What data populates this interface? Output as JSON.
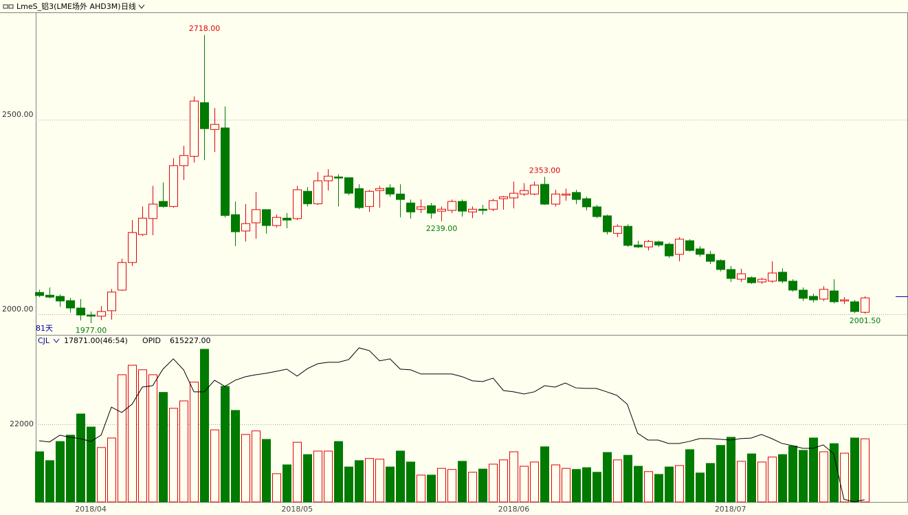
{
  "chart_data": [
    {
      "type": "candlestick",
      "title": "LmeS_铝3(LME场外 AHD3M)",
      "period": "日线",
      "days_label": "81天",
      "categories": [
        null,
        null,
        null,
        null,
        null,
        "2018/04",
        null,
        null,
        null,
        null,
        null,
        null,
        null,
        null,
        null,
        null,
        null,
        null,
        null,
        null,
        null,
        null,
        null,
        null,
        null,
        "2018/05",
        null,
        null,
        null,
        null,
        null,
        null,
        null,
        null,
        null,
        null,
        null,
        null,
        null,
        null,
        null,
        null,
        null,
        null,
        null,
        null,
        "2018/06",
        null,
        null,
        null,
        null,
        null,
        null,
        null,
        null,
        null,
        null,
        null,
        null,
        null,
        null,
        null,
        null,
        null,
        null,
        null,
        null,
        "2018/07",
        null,
        null,
        null,
        null,
        null,
        null,
        null,
        null,
        null,
        null,
        null,
        null,
        null
      ],
      "open": [
        2056,
        2049,
        2046,
        2035,
        2016,
        1998,
        1995,
        2009,
        2062,
        2133,
        2205,
        2246,
        2290,
        2277,
        2382,
        2406,
        2544,
        2475,
        2479,
        2256,
        2214,
        2235,
        2269,
        2228,
        2247,
        2246,
        2316,
        2284,
        2343,
        2353,
        2351,
        2323,
        2277,
        2318,
        2325,
        2309,
        2286,
        2270,
        2279,
        2265,
        2267,
        2290,
        2263,
        2270,
        2270,
        2297,
        2299,
        2309,
        2309,
        2334,
        2283,
        2306,
        2313,
        2297,
        2276,
        2253,
        2208,
        2226,
        2178,
        2173,
        2186,
        2180,
        2154,
        2189,
        2168,
        2154,
        2138,
        2115,
        2090,
        2094,
        2083,
        2085,
        2108,
        2085,
        2062,
        2046,
        2039,
        2060,
        2034,
        2032,
        2005
      ],
      "high": [
        2063,
        2069,
        2051,
        2042,
        2039,
        2007,
        2021,
        2065,
        2143,
        2242,
        2277,
        2330,
        2339,
        2401,
        2433,
        2560,
        2718,
        2530,
        2534,
        2290,
        2283,
        2314,
        2269,
        2256,
        2260,
        2330,
        2327,
        2366,
        2373,
        2360,
        2351,
        2334,
        2320,
        2330,
        2334,
        2334,
        2295,
        2295,
        2286,
        2277,
        2295,
        2295,
        2277,
        2281,
        2297,
        2304,
        2341,
        2337,
        2341,
        2353,
        2320,
        2323,
        2320,
        2302,
        2281,
        2256,
        2231,
        2231,
        2189,
        2191,
        2189,
        2184,
        2198,
        2193,
        2175,
        2163,
        2141,
        2124,
        2117,
        2097,
        2094,
        2136,
        2118,
        2090,
        2069,
        2053,
        2072,
        2090,
        2044,
        2037,
        2046
      ],
      "low": [
        2044,
        2041,
        2019,
        2004,
        1984,
        1977,
        1985,
        1986,
        2060,
        2124,
        2201,
        2203,
        2274,
        2274,
        2345,
        2390,
        2396,
        2417,
        2249,
        2175,
        2187,
        2194,
        2207,
        2223,
        2221,
        2242,
        2277,
        2281,
        2318,
        2277,
        2306,
        2270,
        2263,
        2274,
        2302,
        2249,
        2246,
        2260,
        2246,
        2239,
        2260,
        2251,
        2247,
        2256,
        2265,
        2269,
        2272,
        2304,
        2306,
        2281,
        2277,
        2292,
        2283,
        2267,
        2247,
        2205,
        2198,
        2173,
        2170,
        2164,
        2173,
        2145,
        2136,
        2161,
        2148,
        2129,
        2110,
        2083,
        2083,
        2078,
        2078,
        2081,
        2080,
        2058,
        2034,
        2030,
        2034,
        2028,
        2026,
        2003,
        2001.5
      ],
      "close": [
        2048,
        2044,
        2034,
        2016,
        1998,
        1995,
        2007,
        2057,
        2133,
        2210,
        2247,
        2283,
        2277,
        2382,
        2408,
        2548,
        2477,
        2488,
        2254,
        2212,
        2233,
        2269,
        2228,
        2249,
        2242,
        2320,
        2284,
        2343,
        2355,
        2350,
        2311,
        2274,
        2316,
        2323,
        2309,
        2295,
        2263,
        2276,
        2260,
        2270,
        2290,
        2265,
        2270,
        2267,
        2292,
        2302,
        2311,
        2318,
        2332,
        2283,
        2309,
        2309,
        2295,
        2276,
        2251,
        2212,
        2226,
        2177,
        2173,
        2187,
        2178,
        2150,
        2193,
        2164,
        2154,
        2136,
        2115,
        2092,
        2104,
        2081,
        2090,
        2106,
        2085,
        2062,
        2041,
        2037,
        2064,
        2032,
        2037,
        2007,
        2042
      ],
      "high_labels": [
        null,
        null,
        null,
        null,
        null,
        null,
        null,
        null,
        null,
        null,
        null,
        null,
        null,
        null,
        null,
        null,
        "2718.00",
        null,
        null,
        null,
        null,
        null,
        null,
        null,
        null,
        null,
        null,
        null,
        null,
        null,
        null,
        null,
        null,
        null,
        null,
        null,
        null,
        null,
        null,
        null,
        null,
        null,
        null,
        null,
        null,
        null,
        null,
        null,
        null,
        "2353.00",
        null,
        null,
        null,
        null,
        null,
        null,
        null,
        null,
        null,
        null,
        null,
        null,
        null,
        null,
        null,
        null,
        null,
        null,
        null,
        null,
        null,
        null,
        null,
        null,
        null,
        null,
        null,
        null,
        null,
        null,
        null
      ],
      "low_labels": [
        null,
        null,
        null,
        null,
        null,
        "1977.00",
        null,
        null,
        null,
        null,
        null,
        null,
        null,
        null,
        null,
        null,
        null,
        null,
        null,
        null,
        null,
        null,
        null,
        null,
        null,
        null,
        null,
        null,
        null,
        null,
        null,
        null,
        null,
        null,
        null,
        null,
        null,
        null,
        null,
        "2239.00",
        null,
        null,
        null,
        null,
        null,
        null,
        null,
        null,
        null,
        null,
        null,
        null,
        null,
        null,
        null,
        null,
        null,
        null,
        null,
        null,
        null,
        null,
        null,
        null,
        null,
        null,
        null,
        null,
        null,
        null,
        null,
        null,
        null,
        null,
        null,
        null,
        null,
        null,
        null,
        null,
        "2001.50"
      ],
      "up_color": "#e00000",
      "down_color": "#007a00",
      "ylim": [
        1947,
        2776
      ],
      "yticks": [
        {
          "value": 2000,
          "label": "2000.00"
        },
        {
          "value": 2500,
          "label": "2500.00"
        }
      ],
      "grid": true
    },
    {
      "type": "volume",
      "indicator": "CJL",
      "info": "17871.00(46:54)",
      "values": [
        14200,
        11700,
        17100,
        18900,
        24900,
        21200,
        15400,
        18100,
        36000,
        38700,
        37400,
        36000,
        31000,
        26500,
        28600,
        33900,
        43200,
        20400,
        32700,
        25900,
        19100,
        20100,
        17700,
        8000,
        10500,
        16900,
        13400,
        14400,
        14400,
        17100,
        9900,
        11700,
        12300,
        12100,
        9900,
        14400,
        11300,
        7600,
        7600,
        9500,
        9200,
        11500,
        8400,
        9300,
        10700,
        11900,
        14200,
        10100,
        11300,
        15600,
        10500,
        9500,
        9200,
        9700,
        8400,
        14000,
        11900,
        13200,
        10100,
        8600,
        7800,
        9900,
        10300,
        14800,
        8200,
        10900,
        16000,
        18300,
        11500,
        13600,
        11300,
        12700,
        13400,
        15800,
        14600,
        18100,
        14200,
        16500,
        13800,
        18100,
        17871
      ],
      "ylim": [
        0,
        46700
      ],
      "yticks": [
        22000
      ],
      "grid": true,
      "series": [
        {
          "name": "OPID",
          "info": "615227.00",
          "color": "#000000",
          "axis": "y2",
          "values": [
            648000,
            647300,
            651100,
            649900,
            649200,
            647600,
            651100,
            666700,
            663700,
            668300,
            677800,
            678600,
            687800,
            693500,
            687400,
            675200,
            675200,
            681600,
            678200,
            681600,
            683600,
            684700,
            685500,
            686600,
            687800,
            683900,
            688100,
            690800,
            691600,
            691600,
            693100,
            699600,
            698100,
            692400,
            693500,
            687800,
            687400,
            685100,
            685100,
            685100,
            685100,
            683600,
            681300,
            680900,
            682800,
            675900,
            675200,
            674000,
            675200,
            678600,
            677800,
            680100,
            677400,
            677100,
            677100,
            675200,
            673200,
            668300,
            652200,
            648400,
            648400,
            646500,
            646500,
            647600,
            649200,
            649200,
            648800,
            648400,
            649200,
            649500,
            651500,
            649200,
            646500,
            645300,
            643800,
            643800,
            645700,
            640800,
            615500,
            614000,
            615227
          ]
        }
      ],
      "y2lim": [
        614000,
        705700
      ]
    }
  ]
}
